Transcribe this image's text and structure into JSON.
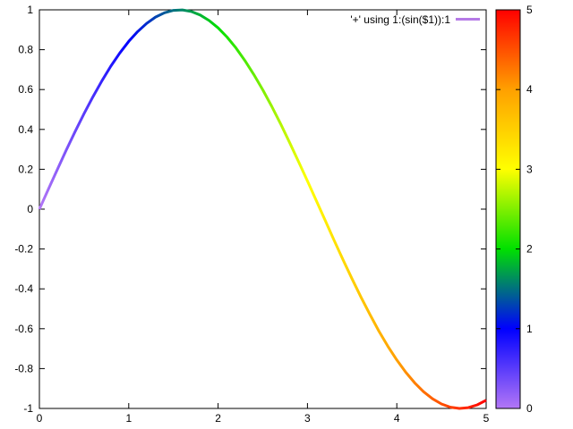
{
  "figure": {
    "background": "#ffffff",
    "border_color": "#000000",
    "text_color": "#000000"
  },
  "chart_data": {
    "type": "line",
    "title": "",
    "xlabel": "",
    "ylabel": "",
    "legend_label": "'+' using 1:(sin($1)):1",
    "legend_sample_color": "#b57ae6",
    "legend_position": "top-right-inside",
    "grid": false,
    "xlim": [
      0,
      5
    ],
    "ylim": [
      -1,
      1
    ],
    "x_tick_values": [
      0,
      1,
      2,
      3,
      4,
      5
    ],
    "x_tick_labels": [
      "0",
      "1",
      "2",
      "3",
      "4",
      "5"
    ],
    "y_tick_values": [
      -1,
      -0.8,
      -0.6,
      -0.4,
      -0.2,
      0,
      0.2,
      0.4,
      0.6,
      0.8,
      1
    ],
    "y_tick_labels": [
      "-1",
      "-0.8",
      "-0.6",
      "-0.4",
      "-0.2",
      "0",
      "0.2",
      "0.4",
      "0.6",
      "0.8",
      "1"
    ],
    "color_mapping": "line segments colored by x value through palette",
    "x": [
      0,
      0.1,
      0.2,
      0.3,
      0.4,
      0.5,
      0.6,
      0.7,
      0.8,
      0.9,
      1.0,
      1.1,
      1.2,
      1.3,
      1.4,
      1.5,
      1.6,
      1.7,
      1.8,
      1.9,
      2.0,
      2.1,
      2.2,
      2.3,
      2.4,
      2.5,
      2.6,
      2.7,
      2.8,
      2.9,
      3.0,
      3.1,
      3.2,
      3.3,
      3.4,
      3.5,
      3.6,
      3.7,
      3.8,
      3.9,
      4.0,
      4.1,
      4.2,
      4.3,
      4.4,
      4.5,
      4.6,
      4.7,
      4.8,
      4.9,
      5.0
    ],
    "y": [
      0,
      0.0998,
      0.1987,
      0.2955,
      0.3894,
      0.4794,
      0.5646,
      0.6442,
      0.7174,
      0.7833,
      0.8415,
      0.8912,
      0.932,
      0.9636,
      0.9854,
      0.9975,
      0.9996,
      0.9917,
      0.9738,
      0.9463,
      0.9093,
      0.8632,
      0.8085,
      0.7457,
      0.6755,
      0.5985,
      0.5155,
      0.4274,
      0.335,
      0.2392,
      0.1411,
      0.0416,
      -0.0584,
      -0.1577,
      -0.2555,
      -0.3508,
      -0.4425,
      -0.5298,
      -0.6119,
      -0.6878,
      -0.7568,
      -0.8183,
      -0.8716,
      -0.9162,
      -0.9516,
      -0.9775,
      -0.9937,
      -0.9999,
      -0.996,
      -0.9822,
      -0.9589
    ],
    "line_width": 3,
    "colorbar": {
      "range": [
        0,
        5
      ],
      "tick_values": [
        0,
        1,
        2,
        3,
        4,
        5
      ],
      "tick_labels": [
        "0",
        "1",
        "2",
        "3",
        "4",
        "5"
      ],
      "palette_stops": [
        {
          "value": 0,
          "color": "#b377f6"
        },
        {
          "value": 1,
          "color": "#0000ff"
        },
        {
          "value": 2,
          "color": "#00e000"
        },
        {
          "value": 3,
          "color": "#ffff00"
        },
        {
          "value": 4,
          "color": "#ffa000"
        },
        {
          "value": 5,
          "color": "#ff0000"
        }
      ]
    }
  }
}
